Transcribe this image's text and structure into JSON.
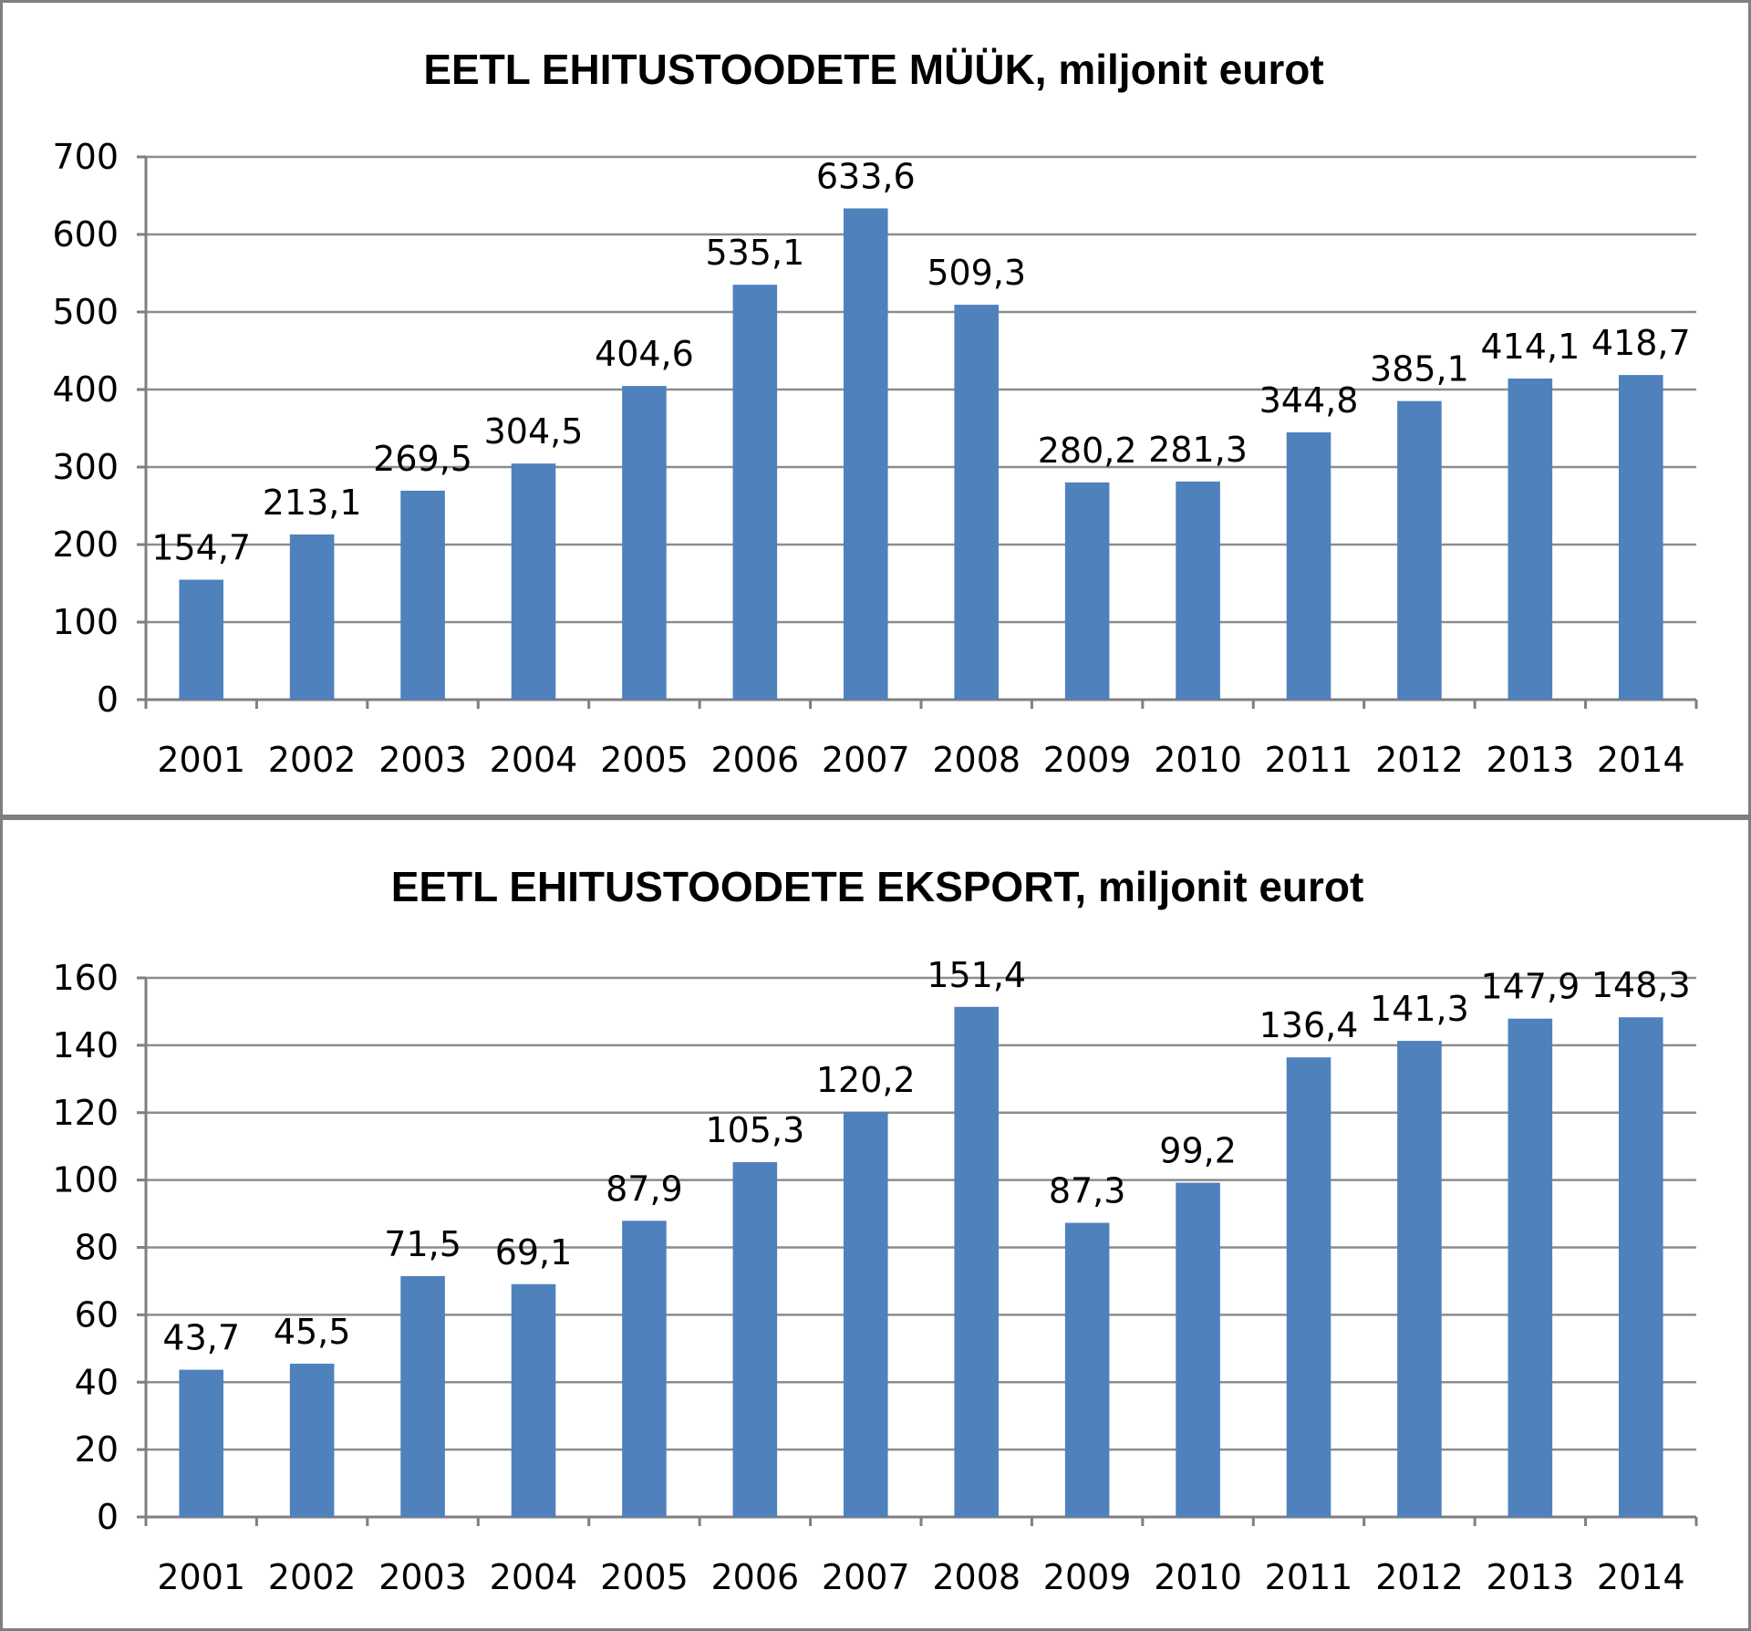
{
  "chart_data": [
    {
      "type": "bar",
      "title": "EETL EHITUSTOODETE MÜÜK, miljonit eurot",
      "categories": [
        "2001",
        "2002",
        "2003",
        "2004",
        "2005",
        "2006",
        "2007",
        "2008",
        "2009",
        "2010",
        "2011",
        "2012",
        "2013",
        "2014"
      ],
      "values": [
        154.7,
        213.1,
        269.5,
        304.5,
        404.6,
        535.1,
        633.6,
        509.3,
        280.2,
        281.3,
        344.8,
        385.1,
        414.1,
        418.7
      ],
      "value_labels": [
        "154,7",
        "213,1",
        "269,5",
        "304,5",
        "404,6",
        "535,1",
        "633,6",
        "509,3",
        "280,2",
        "281,3",
        "344,8",
        "385,1",
        "414,1",
        "418,7"
      ],
      "yticks": [
        0,
        100,
        200,
        300,
        400,
        500,
        600,
        700
      ],
      "ylim": [
        0,
        700
      ],
      "xlabel": "",
      "ylabel": "",
      "grid": true,
      "legend": "none",
      "bar_color": "#4f81bd"
    },
    {
      "type": "bar",
      "title": "EETL EHITUSTOODETE EKSPORT, miljonit eurot",
      "categories": [
        "2001",
        "2002",
        "2003",
        "2004",
        "2005",
        "2006",
        "2007",
        "2008",
        "2009",
        "2010",
        "2011",
        "2012",
        "2013",
        "2014"
      ],
      "values": [
        43.7,
        45.5,
        71.5,
        69.1,
        87.9,
        105.3,
        120.2,
        151.4,
        87.3,
        99.2,
        136.4,
        141.3,
        147.9,
        148.3
      ],
      "value_labels": [
        "43,7",
        "45,5",
        "71,5",
        "69,1",
        "87,9",
        "105,3",
        "120,2",
        "151,4",
        "87,3",
        "99,2",
        "136,4",
        "141,3",
        "147,9",
        "148,3"
      ],
      "yticks": [
        0,
        20,
        40,
        60,
        80,
        100,
        120,
        140,
        160
      ],
      "ylim": [
        0,
        160
      ],
      "xlabel": "",
      "ylabel": "",
      "grid": true,
      "legend": "none",
      "bar_color": "#4f81bd"
    }
  ]
}
